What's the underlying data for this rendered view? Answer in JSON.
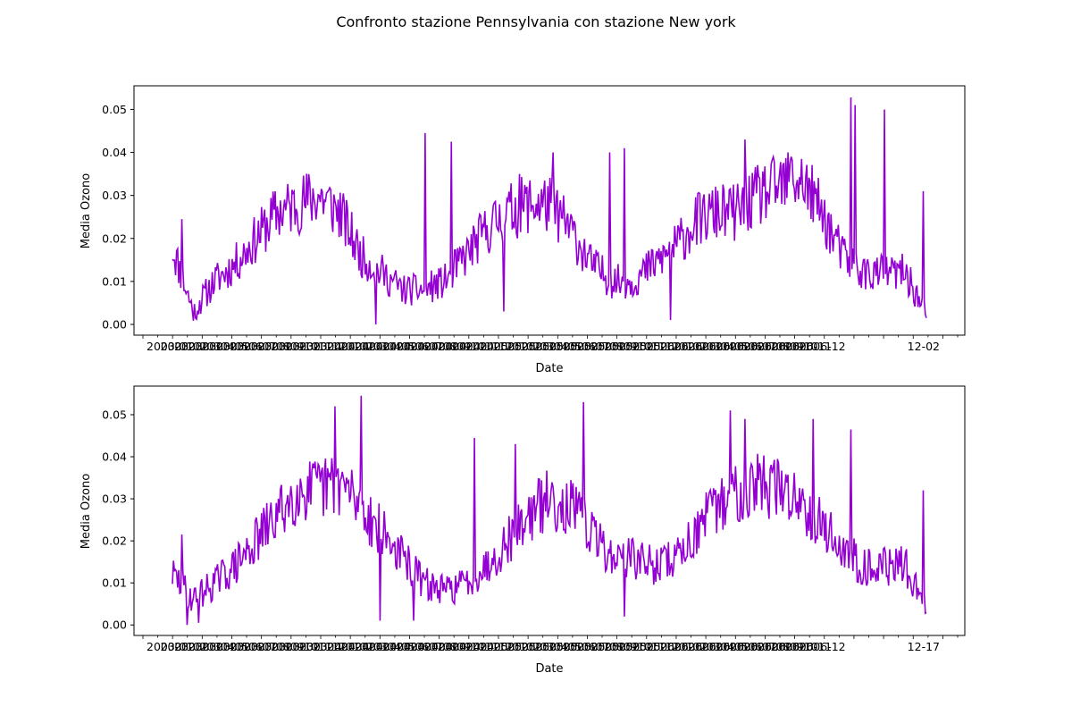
{
  "figure": {
    "suptitle": "Confronto stazione Pennsylvania con stazione New york"
  },
  "chart_data": [
    {
      "type": "line",
      "station": "Pennsylvania",
      "title": "",
      "xlabel": "Date",
      "ylabel": "Media Ozono",
      "ylim": [
        -0.0025,
        0.0555
      ],
      "yticks": [
        0.0,
        0.01,
        0.02,
        0.03,
        0.04,
        0.05
      ],
      "ytick_labels": [
        "0.00",
        "0.01",
        "0.02",
        "0.03",
        "0.04",
        "0.05"
      ],
      "x_range": [
        0,
        1
      ],
      "xtick_labels": [
        "2003-01",
        "2003-02",
        "2003-03",
        "2003-04",
        "2003-05",
        "2003-06",
        "2003-07",
        "2003-08",
        "2003-09",
        "2003-10",
        "2003-11",
        "2003-12",
        "2004-01",
        "2004-02",
        "2004-03",
        "2004-04",
        "2004-05",
        "2004-06",
        "2004-07",
        "2004-08",
        "2004-09",
        "2004-10",
        "2004-11",
        "2004-12",
        "2005-01",
        "2005-02",
        "2005-03",
        "2005-04",
        "2005-05",
        "2005-06",
        "2005-07",
        "2005-08",
        "2005-09",
        "2005-10",
        "2005-11",
        "2005-12",
        "2006-01",
        "2006-02",
        "2006-03",
        "2006-04",
        "2006-05",
        "2006-06",
        "2006-07",
        "2006-08",
        "2006-09",
        "2006-10",
        "2006-11",
        "2006-12"
      ],
      "xtick_label_tail": "12-02",
      "color": "#9400d3",
      "seed": 11,
      "n_points": 720,
      "x_start": 0.05,
      "x_end": 0.95,
      "series_levels": [
        0.018,
        0.003,
        0.01,
        0.014,
        0.02,
        0.026,
        0.028,
        0.03,
        0.026,
        0.016,
        0.012,
        0.008,
        0.008,
        0.01,
        0.016,
        0.022,
        0.026,
        0.028,
        0.028,
        0.022,
        0.014,
        0.01,
        0.01,
        0.014,
        0.018,
        0.024,
        0.026,
        0.026,
        0.03,
        0.032,
        0.034,
        0.026,
        0.016,
        0.012,
        0.012,
        0.012,
        0.002
      ],
      "peaks": [
        [
          0.012,
          0.0245
        ],
        [
          0.335,
          0.0445
        ],
        [
          0.37,
          0.0425
        ],
        [
          0.9,
          0.0528
        ],
        [
          0.945,
          0.05
        ],
        [
          0.905,
          0.051
        ],
        [
          0.76,
          0.043
        ],
        [
          0.82,
          0.039
        ],
        [
          0.6,
          0.041
        ],
        [
          0.58,
          0.04
        ],
        [
          0.505,
          0.04
        ],
        [
          0.46,
          0.035
        ],
        [
          0.996,
          0.031
        ]
      ],
      "troughs": [
        [
          0.03,
          0.0015
        ],
        [
          0.27,
          0.0
        ],
        [
          0.44,
          0.003
        ],
        [
          0.66,
          0.001
        ],
        [
          1.0,
          0.0015
        ]
      ]
    },
    {
      "type": "line",
      "station": "New york",
      "title": "",
      "xlabel": "Date",
      "ylabel": "Media Ozono",
      "ylim": [
        -0.0025,
        0.0568
      ],
      "yticks": [
        0.0,
        0.01,
        0.02,
        0.03,
        0.04,
        0.05
      ],
      "ytick_labels": [
        "0.00",
        "0.01",
        "0.02",
        "0.03",
        "0.04",
        "0.05"
      ],
      "x_range": [
        0,
        1
      ],
      "xtick_labels": [
        "2003-01",
        "2003-02",
        "2003-03",
        "2003-04",
        "2003-05",
        "2003-06",
        "2003-07",
        "2003-08",
        "2003-09",
        "2003-10",
        "2003-11",
        "2003-12",
        "2004-01",
        "2004-02",
        "2004-03",
        "2004-04",
        "2004-05",
        "2004-06",
        "2004-07",
        "2004-08",
        "2004-09",
        "2004-10",
        "2004-11",
        "2004-12",
        "2005-01",
        "2005-02",
        "2005-03",
        "2005-04",
        "2005-05",
        "2005-06",
        "2005-07",
        "2005-08",
        "2005-09",
        "2005-10",
        "2005-11",
        "2005-12",
        "2006-01",
        "2006-02",
        "2006-03",
        "2006-04",
        "2006-05",
        "2006-06",
        "2006-07",
        "2006-08",
        "2006-09",
        "2006-10",
        "2006-11",
        "2006-12"
      ],
      "xtick_label_tail": "12-17",
      "color": "#9400d3",
      "seed": 29,
      "n_points": 720,
      "x_start": 0.05,
      "x_end": 0.95,
      "series_levels": [
        0.012,
        0.006,
        0.01,
        0.014,
        0.02,
        0.026,
        0.032,
        0.032,
        0.034,
        0.028,
        0.022,
        0.016,
        0.01,
        0.008,
        0.01,
        0.014,
        0.02,
        0.026,
        0.03,
        0.028,
        0.022,
        0.016,
        0.016,
        0.014,
        0.016,
        0.022,
        0.028,
        0.032,
        0.034,
        0.032,
        0.03,
        0.024,
        0.018,
        0.014,
        0.014,
        0.014,
        0.004
      ],
      "peaks": [
        [
          0.012,
          0.0215
        ],
        [
          0.215,
          0.052
        ],
        [
          0.25,
          0.0545
        ],
        [
          0.4,
          0.0445
        ],
        [
          0.455,
          0.043
        ],
        [
          0.545,
          0.053
        ],
        [
          0.74,
          0.051
        ],
        [
          0.76,
          0.049
        ],
        [
          0.85,
          0.049
        ],
        [
          0.9,
          0.0465
        ],
        [
          0.996,
          0.032
        ]
      ],
      "troughs": [
        [
          0.02,
          0.0
        ],
        [
          0.035,
          0.0005
        ],
        [
          0.275,
          0.001
        ],
        [
          0.32,
          0.001
        ],
        [
          0.6,
          0.002
        ],
        [
          1.0,
          0.003
        ]
      ]
    }
  ]
}
